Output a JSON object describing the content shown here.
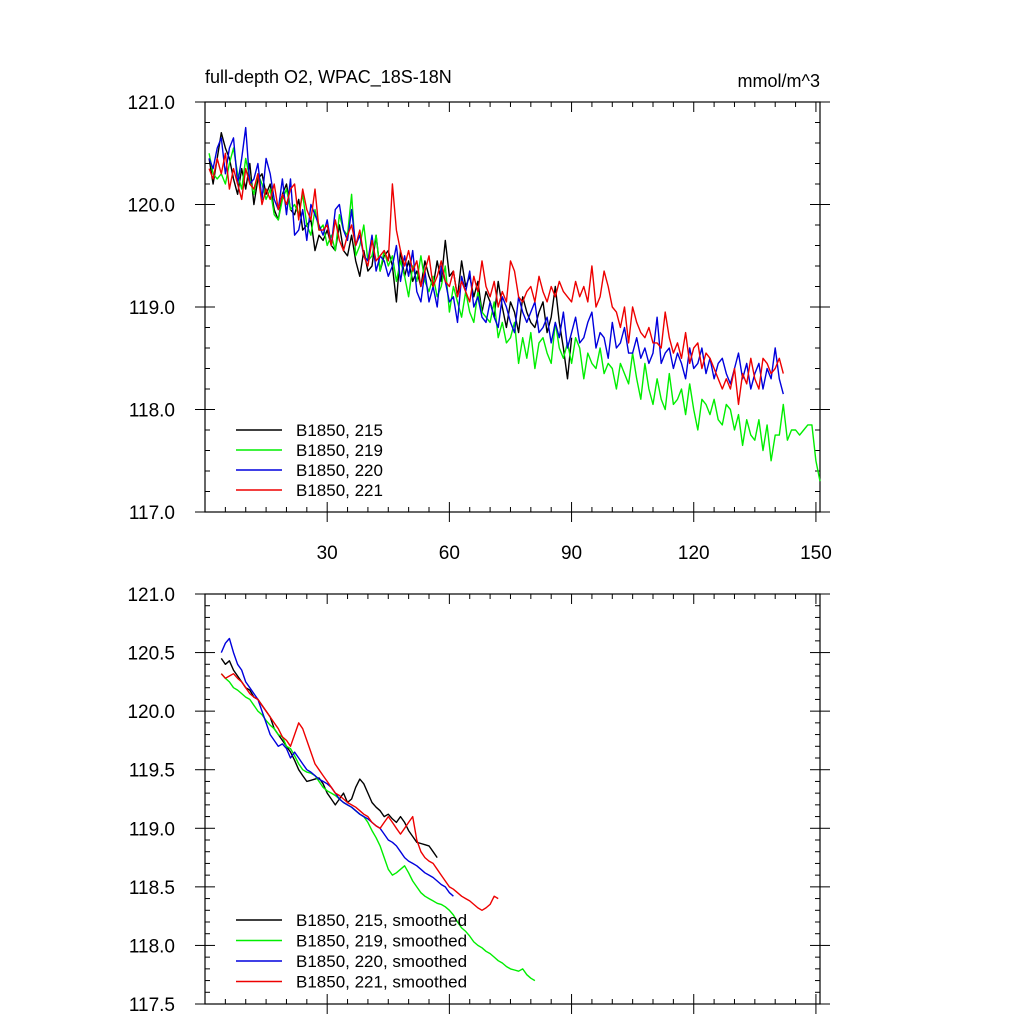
{
  "chart_data": [
    {
      "type": "line",
      "title": "full-depth O2, WPAC_18S-18N",
      "units": "mmol/m^3",
      "xlabel": "",
      "ylabel": "",
      "xlim": [
        0,
        151
      ],
      "ylim": [
        117.0,
        121.0
      ],
      "xticks": [
        30,
        60,
        90,
        120,
        150
      ],
      "xtick_labels": [
        "30",
        "60",
        "90",
        "120",
        "150"
      ],
      "yticks": [
        117.0,
        118.0,
        119.0,
        120.0,
        121.0
      ],
      "ytick_labels": [
        "117.0",
        "118.0",
        "119.0",
        "120.0",
        "121.0"
      ],
      "legend_position": "bottom-left",
      "series": [
        {
          "name": "B1850, 215",
          "color": "#000000",
          "x_start": 1,
          "values": [
            120.45,
            120.2,
            120.45,
            120.7,
            120.55,
            120.45,
            120.25,
            120.1,
            120.35,
            120.15,
            120.4,
            120.0,
            120.25,
            120.3,
            120.1,
            120.2,
            119.95,
            119.85,
            120.1,
            120.2,
            119.95,
            119.9,
            120.05,
            119.75,
            119.8,
            119.85,
            119.55,
            119.7,
            119.65,
            119.75,
            119.6,
            119.55,
            119.8,
            119.55,
            119.5,
            119.7,
            119.45,
            119.3,
            119.55,
            119.35,
            119.4,
            119.7,
            119.35,
            119.5,
            119.55,
            119.4,
            119.05,
            119.55,
            119.3,
            119.45,
            119.25,
            119.35,
            119.2,
            119.45,
            119.3,
            119.2,
            119.45,
            119.25,
            119.65,
            119.3,
            119.35,
            119.1,
            119.45,
            119.2,
            119.3,
            119.1,
            119.25,
            118.95,
            119.15,
            119.05,
            118.9,
            119.25,
            119.0,
            118.8,
            119.05,
            118.95,
            118.75,
            119.1,
            118.95,
            118.85,
            118.8,
            118.95,
            119.05,
            118.75,
            118.9,
            119.2,
            118.85,
            118.6,
            118.3,
            118.7
          ]
        },
        {
          "name": "B1850, 219",
          "color": "#00ee00",
          "x_start": 1,
          "values": [
            120.5,
            120.3,
            120.25,
            120.3,
            120.2,
            120.4,
            120.55,
            120.3,
            120.15,
            120.45,
            120.25,
            120.1,
            120.3,
            120.2,
            120.05,
            120.15,
            119.9,
            119.85,
            120.05,
            120.15,
            119.95,
            120.0,
            119.9,
            120.1,
            119.8,
            119.7,
            119.95,
            119.75,
            119.8,
            119.6,
            119.7,
            119.55,
            119.9,
            119.75,
            119.7,
            120.1,
            119.5,
            119.6,
            119.8,
            119.45,
            119.5,
            119.7,
            119.35,
            119.55,
            119.4,
            119.5,
            119.25,
            119.45,
            119.3,
            119.1,
            119.4,
            119.25,
            119.5,
            119.25,
            119.15,
            119.3,
            119.1,
            119.2,
            119.4,
            118.95,
            119.2,
            119.05,
            118.9,
            119.15,
            118.95,
            118.85,
            119.15,
            118.95,
            118.9,
            118.85,
            119.05,
            118.7,
            118.85,
            118.65,
            118.7,
            118.85,
            118.45,
            118.7,
            118.5,
            118.75,
            118.4,
            118.65,
            118.7,
            118.55,
            118.45,
            118.85,
            118.6,
            118.5,
            118.65,
            118.45,
            118.7,
            118.6,
            118.3,
            118.55,
            118.45,
            118.4,
            118.6,
            118.35,
            118.45,
            118.4,
            118.2,
            118.45,
            118.35,
            118.25,
            118.55,
            118.3,
            118.1,
            118.45,
            118.2,
            118.05,
            118.3,
            118.1,
            118.0,
            118.35,
            118.05,
            118.1,
            118.2,
            117.95,
            118.25,
            118.0,
            117.8,
            118.1,
            118.05,
            117.95,
            118.1,
            117.9,
            117.85,
            118.05,
            118.0,
            117.8,
            117.95,
            117.65,
            117.9,
            117.75,
            117.7,
            117.9,
            117.6,
            117.85,
            117.5,
            117.75,
            117.75,
            118.05,
            117.7,
            117.8,
            117.8,
            117.75,
            117.8,
            117.85,
            117.85,
            117.5,
            117.3
          ]
        },
        {
          "name": "B1850, 220",
          "color": "#0000dd",
          "x_start": 1,
          "values": [
            120.45,
            120.35,
            120.55,
            120.65,
            120.3,
            120.55,
            120.65,
            120.2,
            120.45,
            120.75,
            120.2,
            120.25,
            120.4,
            120.05,
            120.45,
            120.3,
            120.05,
            119.95,
            120.25,
            119.9,
            120.25,
            119.7,
            119.75,
            119.95,
            119.65,
            120.0,
            119.9,
            119.8,
            119.7,
            119.85,
            119.6,
            119.95,
            120.0,
            119.75,
            119.65,
            119.95,
            119.6,
            119.7,
            119.5,
            119.45,
            119.7,
            119.35,
            119.5,
            119.45,
            119.3,
            119.4,
            119.6,
            119.25,
            119.5,
            119.3,
            119.55,
            119.15,
            119.05,
            119.35,
            119.05,
            119.2,
            119.0,
            119.4,
            119.25,
            119.05,
            119.1,
            118.85,
            119.3,
            119.15,
            119.35,
            119.0,
            119.1,
            118.9,
            118.85,
            119.05,
            118.9,
            118.8,
            119.1,
            119.0,
            118.85,
            118.75,
            119.1,
            118.95,
            118.85,
            118.95,
            119.05,
            118.75,
            118.8,
            118.9,
            118.65,
            118.85,
            118.7,
            118.95,
            118.6,
            118.75,
            118.9,
            118.65,
            118.7,
            118.85,
            118.95,
            118.6,
            118.75,
            118.7,
            118.5,
            118.85,
            118.6,
            118.65,
            118.8,
            118.55,
            118.55,
            118.7,
            118.5,
            118.6,
            118.45,
            118.55,
            118.9,
            118.45,
            118.55,
            118.6,
            118.4,
            118.55,
            118.45,
            118.3,
            118.6,
            118.4,
            118.45,
            118.6,
            118.35,
            118.5,
            118.3,
            118.45,
            118.5,
            118.35,
            118.25,
            118.4,
            118.55,
            118.3,
            118.45,
            118.2,
            118.35,
            118.45,
            118.2,
            118.4,
            118.3,
            118.6,
            118.3,
            118.15
          ]
        },
        {
          "name": "B1850, 221",
          "color": "#ee0000",
          "x_start": 1,
          "values": [
            120.35,
            120.25,
            120.45,
            120.3,
            120.5,
            120.15,
            120.35,
            120.2,
            120.05,
            120.35,
            120.2,
            120.15,
            120.3,
            120.0,
            120.15,
            120.05,
            120.2,
            119.95,
            120.1,
            120.0,
            120.15,
            120.2,
            119.85,
            120.15,
            119.95,
            119.85,
            120.15,
            119.75,
            119.75,
            119.8,
            119.6,
            119.85,
            119.65,
            119.55,
            119.7,
            119.8,
            119.6,
            119.75,
            119.5,
            119.4,
            119.65,
            119.45,
            119.5,
            119.55,
            119.45,
            120.2,
            119.75,
            119.55,
            119.4,
            119.55,
            119.35,
            119.45,
            119.2,
            119.35,
            119.5,
            119.2,
            119.3,
            119.45,
            119.25,
            119.2,
            119.35,
            119.1,
            119.25,
            119.15,
            119.05,
            119.3,
            119.15,
            119.45,
            119.2,
            119.1,
            119.25,
            119.0,
            119.15,
            119.05,
            119.45,
            119.35,
            119.1,
            119.05,
            119.15,
            119.2,
            119.05,
            119.3,
            119.15,
            119.05,
            119.2,
            119.1,
            119.25,
            119.15,
            119.1,
            119.05,
            119.25,
            119.1,
            119.2,
            119.05,
            119.4,
            119.0,
            119.1,
            119.35,
            119.2,
            119.0,
            118.95,
            118.8,
            119.0,
            118.65,
            119.0,
            118.85,
            118.75,
            118.7,
            118.8,
            118.65,
            118.65,
            118.6,
            118.95,
            118.7,
            118.55,
            118.65,
            118.5,
            118.75,
            118.45,
            118.6,
            118.65,
            118.4,
            118.55,
            118.5,
            118.4,
            118.3,
            118.2,
            118.3,
            118.2,
            118.4,
            118.05,
            118.35,
            118.25,
            118.5,
            118.3,
            118.2,
            118.5,
            118.45,
            118.35,
            118.4,
            118.5,
            118.35
          ]
        }
      ]
    },
    {
      "type": "line",
      "title": "",
      "xlabel": "",
      "ylabel": "",
      "xlim": [
        0,
        151
      ],
      "ylim": [
        117.5,
        121.0
      ],
      "xticks": [
        30,
        60,
        90,
        120,
        150
      ],
      "yticks": [
        117.5,
        118.0,
        118.5,
        119.0,
        119.5,
        120.0,
        120.5,
        121.0
      ],
      "ytick_labels": [
        "117.5",
        "118.0",
        "118.5",
        "119.0",
        "119.5",
        "120.0",
        "120.5",
        "121.0"
      ],
      "legend_position": "bottom-left",
      "series": [
        {
          "name": "B1850, 215, smoothed",
          "color": "#000000",
          "x_start": 4,
          "values": [
            120.45,
            120.4,
            120.43,
            120.35,
            120.3,
            120.25,
            120.2,
            120.18,
            120.12,
            120.1,
            120.05,
            120.0,
            119.95,
            119.85,
            119.8,
            119.75,
            119.7,
            119.65,
            119.58,
            119.5,
            119.45,
            119.4,
            119.41,
            119.42,
            119.43,
            119.38,
            119.3,
            119.25,
            119.2,
            119.25,
            119.3,
            119.22,
            119.25,
            119.35,
            119.42,
            119.38,
            119.3,
            119.22,
            119.18,
            119.15,
            119.1,
            119.12,
            119.08,
            119.05,
            119.1,
            119.05,
            118.98,
            118.93,
            118.88,
            118.87,
            118.86,
            118.85,
            118.8,
            118.75
          ]
        },
        {
          "name": "B1850, 219, smoothed",
          "color": "#00ee00",
          "x_start": 4,
          "values": [
            120.32,
            120.28,
            120.25,
            120.2,
            120.18,
            120.15,
            120.12,
            120.1,
            120.05,
            120.0,
            119.97,
            119.92,
            119.88,
            119.85,
            119.8,
            119.78,
            119.7,
            119.68,
            119.62,
            119.55,
            119.5,
            119.48,
            119.47,
            119.45,
            119.4,
            119.35,
            119.32,
            119.3,
            119.28,
            119.25,
            119.22,
            119.2,
            119.18,
            119.15,
            119.12,
            119.1,
            119.05,
            118.98,
            118.92,
            118.85,
            118.75,
            118.65,
            118.6,
            118.62,
            118.65,
            118.68,
            118.62,
            118.55,
            118.5,
            118.45,
            118.42,
            118.4,
            118.38,
            118.36,
            118.35,
            118.33,
            118.3,
            118.26,
            118.2,
            118.15,
            118.12,
            118.08,
            118.03,
            118.0,
            117.98,
            117.95,
            117.93,
            117.9,
            117.87,
            117.85,
            117.82,
            117.8,
            117.79,
            117.78,
            117.8,
            117.75,
            117.72,
            117.7
          ]
        },
        {
          "name": "B1850, 220, smoothed",
          "color": "#0000dd",
          "x_start": 4,
          "values": [
            120.5,
            120.58,
            120.62,
            120.5,
            120.4,
            120.35,
            120.25,
            120.2,
            120.15,
            120.1,
            120.0,
            119.9,
            119.8,
            119.75,
            119.7,
            119.72,
            119.68,
            119.6,
            119.65,
            119.6,
            119.55,
            119.5,
            119.48,
            119.45,
            119.42,
            119.4,
            119.38,
            119.35,
            119.3,
            119.25,
            119.22,
            119.2,
            119.18,
            119.15,
            119.12,
            119.1,
            119.08,
            119.05,
            119.02,
            119.0,
            118.95,
            118.9,
            118.88,
            118.85,
            118.8,
            118.75,
            118.72,
            118.7,
            118.68,
            118.65,
            118.62,
            118.6,
            118.58,
            118.55,
            118.52,
            118.5,
            118.45,
            118.42
          ]
        },
        {
          "name": "B1850, 221, smoothed",
          "color": "#ee0000",
          "x_start": 4,
          "values": [
            120.32,
            120.28,
            120.3,
            120.32,
            120.28,
            120.25,
            120.2,
            120.15,
            120.12,
            120.1,
            120.05,
            120.0,
            119.95,
            119.9,
            119.85,
            119.78,
            119.75,
            119.7,
            119.8,
            119.9,
            119.85,
            119.75,
            119.65,
            119.55,
            119.5,
            119.45,
            119.4,
            119.35,
            119.3,
            119.28,
            119.25,
            119.22,
            119.2,
            119.18,
            119.15,
            119.12,
            119.1,
            119.05,
            119.02,
            119.0,
            119.05,
            119.1,
            119.05,
            119.0,
            118.95,
            119.0,
            119.05,
            119.1,
            118.9,
            118.8,
            118.75,
            118.72,
            118.7,
            118.65,
            118.6,
            118.55,
            118.5,
            118.48,
            118.45,
            118.42,
            118.4,
            118.38,
            118.35,
            118.32,
            118.3,
            118.32,
            118.35,
            118.42,
            118.4
          ]
        }
      ]
    }
  ]
}
